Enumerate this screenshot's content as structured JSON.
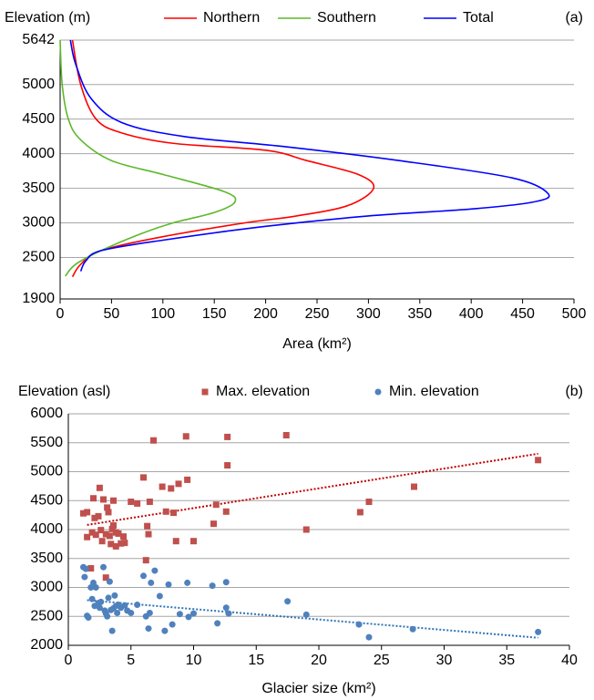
{
  "chart_data": [
    {
      "type": "line",
      "ylabel": "Elevation (m)",
      "annotation": "(a)",
      "xlabel": "Area (km²)",
      "xlim": [
        0,
        500
      ],
      "xticks": [
        0,
        50,
        100,
        150,
        200,
        250,
        300,
        350,
        400,
        450,
        500
      ],
      "ylim": [
        1900,
        5642
      ],
      "yticks": [
        1900,
        2500,
        3000,
        3500,
        4000,
        4500,
        5000,
        5642
      ],
      "grid": true,
      "series": [
        {
          "name": "Northern",
          "color": "#ff0000",
          "x": [
            12,
            20,
            40,
            100,
            180,
            230,
            280,
            305,
            290,
            240,
            200,
            110,
            60,
            35,
            20,
            12
          ],
          "y": [
            2220,
            2400,
            2600,
            2800,
            3000,
            3100,
            3250,
            3500,
            3700,
            3900,
            4050,
            4150,
            4300,
            4500,
            5000,
            5642
          ]
        },
        {
          "name": "Southern",
          "color": "#5cb82a",
          "x": [
            5,
            15,
            40,
            80,
            110,
            150,
            170,
            160,
            100,
            50,
            20,
            8,
            2,
            0
          ],
          "y": [
            2230,
            2400,
            2600,
            2850,
            3000,
            3150,
            3300,
            3450,
            3700,
            3900,
            4200,
            4500,
            5000,
            5642
          ]
        },
        {
          "name": "Total",
          "color": "#0000ff",
          "x": [
            20,
            25,
            40,
            100,
            200,
            300,
            400,
            460,
            475,
            440,
            330,
            220,
            120,
            60,
            30,
            15,
            10
          ],
          "y": [
            2300,
            2450,
            2600,
            2750,
            2950,
            3100,
            3200,
            3300,
            3420,
            3650,
            3900,
            4100,
            4250,
            4450,
            4800,
            5300,
            5642
          ]
        }
      ]
    },
    {
      "type": "scatter",
      "ylabel": "Elevation (asl)",
      "annotation": "(b)",
      "xlabel": "Glacier size (km²)",
      "xlim": [
        0,
        40
      ],
      "xticks": [
        0,
        5,
        10,
        15,
        20,
        25,
        30,
        35,
        40
      ],
      "ylim": [
        2000,
        6000
      ],
      "yticks": [
        2000,
        2500,
        3000,
        3500,
        4000,
        4500,
        5000,
        5500,
        6000
      ],
      "grid": true,
      "series": [
        {
          "name": "Max. elevation",
          "color": "#c0504d",
          "marker": "square",
          "trend_color": "#c00000",
          "x": [
            1.2,
            1.5,
            1.5,
            1.8,
            1.9,
            2.0,
            2.1,
            2.2,
            2.4,
            2.5,
            2.6,
            2.7,
            2.8,
            3.0,
            3.0,
            3.1,
            3.2,
            3.3,
            3.4,
            3.5,
            3.6,
            3.6,
            3.8,
            3.8,
            4.0,
            4.2,
            4.4,
            4.5,
            5.0,
            5.5,
            6.0,
            6.2,
            6.3,
            6.4,
            6.5,
            6.8,
            7.5,
            7.8,
            8.2,
            8.4,
            8.6,
            8.8,
            9.4,
            9.5,
            10.0,
            11.6,
            11.8,
            12.6,
            12.7,
            12.7,
            17.4,
            19.0,
            23.3,
            24.0,
            27.6,
            37.5
          ],
          "y": [
            4280,
            3870,
            4300,
            3330,
            3950,
            4540,
            4200,
            3910,
            4230,
            4720,
            3990,
            3800,
            4520,
            3920,
            3170,
            4380,
            4300,
            3890,
            3750,
            4010,
            4500,
            4070,
            3950,
            3710,
            3930,
            3760,
            3880,
            3770,
            4480,
            4450,
            4900,
            3470,
            4060,
            3920,
            4480,
            5540,
            4740,
            4310,
            4710,
            4290,
            3800,
            4790,
            5610,
            4860,
            3800,
            4100,
            4430,
            4310,
            5110,
            5600,
            5630,
            4000,
            4300,
            4480,
            4740,
            5200
          ],
          "trend": {
            "x": [
              1.5,
              37.5
            ],
            "y": [
              4080,
              5310
            ]
          }
        },
        {
          "name": "Min. elevation",
          "color": "#4f81bd",
          "marker": "circle",
          "trend_color": "#2e75b6",
          "x": [
            1.2,
            1.3,
            1.4,
            1.5,
            1.6,
            1.8,
            1.9,
            2.0,
            2.1,
            2.2,
            2.4,
            2.5,
            2.6,
            2.8,
            2.9,
            3.0,
            3.1,
            3.2,
            3.3,
            3.4,
            3.5,
            3.6,
            3.7,
            3.8,
            3.9,
            4.0,
            4.2,
            4.5,
            4.7,
            5.0,
            5.5,
            6.0,
            6.2,
            6.4,
            6.5,
            6.6,
            6.9,
            7.3,
            7.7,
            8.0,
            8.3,
            8.9,
            9.5,
            9.6,
            10.0,
            11.5,
            11.9,
            12.6,
            12.6,
            12.8,
            17.5,
            19.0,
            23.2,
            24.0,
            27.5,
            37.5
          ],
          "y": [
            3350,
            3180,
            3320,
            2510,
            2480,
            3000,
            2800,
            3080,
            2680,
            3000,
            2730,
            2650,
            2750,
            3350,
            2600,
            2550,
            2500,
            2820,
            3100,
            2610,
            2250,
            2640,
            2860,
            2680,
            2560,
            2700,
            2650,
            2690,
            2600,
            2560,
            2700,
            3200,
            2500,
            2290,
            2560,
            3080,
            3290,
            2850,
            2250,
            3050,
            2360,
            2540,
            3080,
            2490,
            2550,
            3030,
            2380,
            3090,
            2650,
            2550,
            2760,
            2530,
            2360,
            2140,
            2280,
            2230
          ],
          "trend": {
            "x": [
              1.5,
              37.5
            ],
            "y": [
              2780,
              2130
            ]
          }
        }
      ]
    }
  ]
}
